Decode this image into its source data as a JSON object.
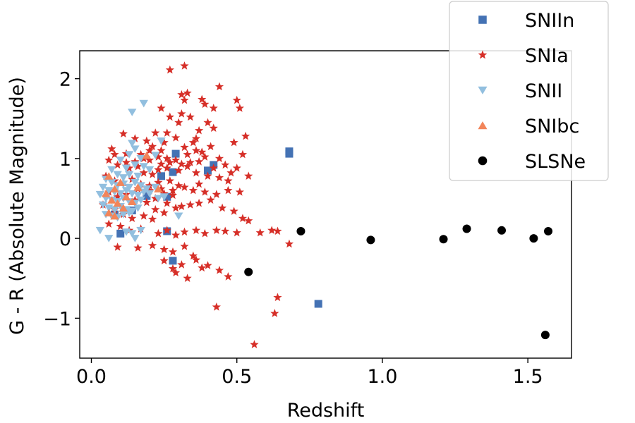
{
  "chart_data": {
    "type": "scatter",
    "title": "",
    "xlabel": "Redshift",
    "ylabel": "G - R (Absolute Magnitude)",
    "xlim": [
      -0.04,
      1.65
    ],
    "ylim": [
      -1.5,
      2.35
    ],
    "xticks": [
      0.0,
      0.5,
      1.0,
      1.5
    ],
    "xtick_labels": [
      "0.0",
      "0.5",
      "1.0",
      "1.5"
    ],
    "yticks": [
      -1,
      0,
      1,
      2
    ],
    "ytick_labels": [
      "−1",
      "0",
      "1",
      "2"
    ],
    "grid": false,
    "legend_position": "upper-right",
    "series": [
      {
        "name": "SNIIn",
        "marker": "square",
        "color": "#4472b4",
        "points": [
          [
            0.68,
            1.06
          ],
          [
            0.68,
            1.09
          ],
          [
            0.4,
            0.85
          ],
          [
            0.42,
            0.92
          ],
          [
            0.29,
            1.06
          ],
          [
            0.28,
            0.83
          ],
          [
            0.24,
            0.78
          ],
          [
            0.78,
            -0.82
          ],
          [
            0.28,
            -0.28
          ],
          [
            0.26,
            0.52
          ],
          [
            0.26,
            0.09
          ],
          [
            0.1,
            0.06
          ],
          [
            0.14,
            0.35
          ],
          [
            0.19,
            0.53
          ],
          [
            0.08,
            0.3
          ]
        ]
      },
      {
        "name": "SNIa",
        "marker": "star",
        "color": "#d62f28",
        "points": [
          [
            0.27,
            2.11
          ],
          [
            0.32,
            2.16
          ],
          [
            0.44,
            1.9
          ],
          [
            0.31,
            1.8
          ],
          [
            0.33,
            1.82
          ],
          [
            0.32,
            1.73
          ],
          [
            0.38,
            1.74
          ],
          [
            0.42,
            1.63
          ],
          [
            0.5,
            1.73
          ],
          [
            0.51,
            1.63
          ],
          [
            0.39,
            1.68
          ],
          [
            0.24,
            1.63
          ],
          [
            0.31,
            1.56
          ],
          [
            0.27,
            1.52
          ],
          [
            0.34,
            1.52
          ],
          [
            0.3,
            1.45
          ],
          [
            0.4,
            1.45
          ],
          [
            0.37,
            1.35
          ],
          [
            0.42,
            1.38
          ],
          [
            0.53,
            1.28
          ],
          [
            0.49,
            1.2
          ],
          [
            0.36,
            1.25
          ],
          [
            0.25,
            1.2
          ],
          [
            0.21,
            1.15
          ],
          [
            0.22,
            1.32
          ],
          [
            0.26,
            1.32
          ],
          [
            0.19,
            1.22
          ],
          [
            0.15,
            1.25
          ],
          [
            0.11,
            1.31
          ],
          [
            0.07,
            1.12
          ],
          [
            0.08,
            1.05
          ],
          [
            0.12,
            1.06
          ],
          [
            0.17,
            1.05
          ],
          [
            0.2,
            1.1
          ],
          [
            0.23,
            1.02
          ],
          [
            0.26,
            1.0
          ],
          [
            0.29,
            0.98
          ],
          [
            0.33,
            1.05
          ],
          [
            0.36,
            1.1
          ],
          [
            0.39,
            1.02
          ],
          [
            0.44,
            1.0
          ],
          [
            0.46,
            0.92
          ],
          [
            0.5,
            0.88
          ],
          [
            0.52,
            1.05
          ],
          [
            0.54,
            0.78
          ],
          [
            0.06,
            0.98
          ],
          [
            0.09,
            0.92
          ],
          [
            0.13,
            0.88
          ],
          [
            0.16,
            0.9
          ],
          [
            0.18,
            0.82
          ],
          [
            0.21,
            0.8
          ],
          [
            0.23,
            0.86
          ],
          [
            0.26,
            0.88
          ],
          [
            0.3,
            0.85
          ],
          [
            0.33,
            0.9
          ],
          [
            0.36,
            0.82
          ],
          [
            0.4,
            0.78
          ],
          [
            0.44,
            0.76
          ],
          [
            0.47,
            0.72
          ],
          [
            0.05,
            0.78
          ],
          [
            0.08,
            0.72
          ],
          [
            0.11,
            0.7
          ],
          [
            0.14,
            0.74
          ],
          [
            0.17,
            0.68
          ],
          [
            0.2,
            0.66
          ],
          [
            0.23,
            0.7
          ],
          [
            0.27,
            0.72
          ],
          [
            0.3,
            0.66
          ],
          [
            0.35,
            0.6
          ],
          [
            0.39,
            0.58
          ],
          [
            0.43,
            0.55
          ],
          [
            0.47,
            0.6
          ],
          [
            0.51,
            0.58
          ],
          [
            0.06,
            0.58
          ],
          [
            0.09,
            0.52
          ],
          [
            0.12,
            0.55
          ],
          [
            0.15,
            0.48
          ],
          [
            0.19,
            0.45
          ],
          [
            0.22,
            0.5
          ],
          [
            0.26,
            0.44
          ],
          [
            0.29,
            0.38
          ],
          [
            0.04,
            0.42
          ],
          [
            0.08,
            0.36
          ],
          [
            0.11,
            0.3
          ],
          [
            0.14,
            0.25
          ],
          [
            0.18,
            0.28
          ],
          [
            0.21,
            0.24
          ],
          [
            0.06,
            0.18
          ],
          [
            0.1,
            0.15
          ],
          [
            0.13,
            0.1
          ],
          [
            0.17,
            0.12
          ],
          [
            0.23,
            0.06
          ],
          [
            0.26,
            0.1
          ],
          [
            0.29,
            0.04
          ],
          [
            0.32,
            0.08
          ],
          [
            0.36,
            0.1
          ],
          [
            0.39,
            0.06
          ],
          [
            0.43,
            0.1
          ],
          [
            0.46,
            0.09
          ],
          [
            0.5,
            0.07
          ],
          [
            0.52,
            0.25
          ],
          [
            0.54,
            0.22
          ],
          [
            0.58,
            0.07
          ],
          [
            0.62,
            0.1
          ],
          [
            0.64,
            0.09
          ],
          [
            0.68,
            -0.07
          ],
          [
            0.09,
            -0.11
          ],
          [
            0.16,
            -0.12
          ],
          [
            0.21,
            -0.09
          ],
          [
            0.25,
            -0.14
          ],
          [
            0.28,
            -0.17
          ],
          [
            0.32,
            -0.1
          ],
          [
            0.35,
            -0.22
          ],
          [
            0.31,
            -0.33
          ],
          [
            0.28,
            -0.38
          ],
          [
            0.25,
            -0.28
          ],
          [
            0.38,
            -0.37
          ],
          [
            0.4,
            -0.34
          ],
          [
            0.44,
            -0.4
          ],
          [
            0.36,
            -0.27
          ],
          [
            0.33,
            -0.5
          ],
          [
            0.47,
            -0.48
          ],
          [
            0.29,
            -0.43
          ],
          [
            0.64,
            -0.74
          ],
          [
            0.63,
            -0.94
          ],
          [
            0.43,
            -0.86
          ],
          [
            0.56,
            -1.33
          ],
          [
            0.31,
            0.4
          ],
          [
            0.34,
            0.42
          ],
          [
            0.37,
            0.44
          ],
          [
            0.41,
            0.48
          ],
          [
            0.45,
            0.38
          ],
          [
            0.49,
            0.34
          ],
          [
            0.25,
            0.56
          ],
          [
            0.28,
            0.54
          ],
          [
            0.32,
            1.14
          ],
          [
            0.35,
            1.2
          ],
          [
            0.38,
            1.08
          ],
          [
            0.41,
            1.15
          ],
          [
            0.29,
            1.26
          ],
          [
            0.24,
            1.1
          ],
          [
            0.2,
            0.98
          ],
          [
            0.18,
            1.0
          ],
          [
            0.15,
            0.96
          ],
          [
            0.12,
            0.95
          ],
          [
            0.34,
            0.95
          ],
          [
            0.37,
            0.96
          ],
          [
            0.31,
            0.93
          ],
          [
            0.27,
            0.95
          ],
          [
            0.24,
            0.93
          ],
          [
            0.42,
            0.88
          ],
          [
            0.48,
            0.82
          ],
          [
            0.16,
            0.62
          ],
          [
            0.2,
            0.6
          ],
          [
            0.24,
            0.62
          ],
          [
            0.28,
            0.6
          ],
          [
            0.32,
            0.64
          ],
          [
            0.37,
            0.68
          ],
          [
            0.22,
            0.36
          ],
          [
            0.25,
            0.32
          ]
        ]
      },
      {
        "name": "SNII",
        "marker": "triangle-down",
        "color": "#92bfdf",
        "points": [
          [
            0.14,
            1.58
          ],
          [
            0.18,
            1.69
          ],
          [
            0.24,
            1.22
          ],
          [
            0.14,
            1.19
          ],
          [
            0.15,
            1.12
          ],
          [
            0.13,
            1.05
          ],
          [
            0.22,
            1.04
          ],
          [
            0.17,
            1.0
          ],
          [
            0.1,
            0.98
          ],
          [
            0.12,
            0.88
          ],
          [
            0.15,
            0.92
          ],
          [
            0.18,
            0.9
          ],
          [
            0.2,
            0.86
          ],
          [
            0.07,
            0.86
          ],
          [
            0.09,
            0.8
          ],
          [
            0.11,
            0.76
          ],
          [
            0.13,
            0.8
          ],
          [
            0.16,
            0.78
          ],
          [
            0.05,
            0.74
          ],
          [
            0.07,
            0.7
          ],
          [
            0.09,
            0.66
          ],
          [
            0.11,
            0.68
          ],
          [
            0.13,
            0.64
          ],
          [
            0.15,
            0.7
          ],
          [
            0.17,
            0.66
          ],
          [
            0.19,
            0.62
          ],
          [
            0.04,
            0.64
          ],
          [
            0.06,
            0.6
          ],
          [
            0.08,
            0.58
          ],
          [
            0.1,
            0.56
          ],
          [
            0.12,
            0.6
          ],
          [
            0.14,
            0.56
          ],
          [
            0.16,
            0.54
          ],
          [
            0.18,
            0.58
          ],
          [
            0.2,
            0.56
          ],
          [
            0.03,
            0.55
          ],
          [
            0.05,
            0.5
          ],
          [
            0.07,
            0.48
          ],
          [
            0.09,
            0.46
          ],
          [
            0.11,
            0.5
          ],
          [
            0.13,
            0.46
          ],
          [
            0.15,
            0.44
          ],
          [
            0.17,
            0.48
          ],
          [
            0.04,
            0.42
          ],
          [
            0.06,
            0.38
          ],
          [
            0.08,
            0.36
          ],
          [
            0.1,
            0.4
          ],
          [
            0.12,
            0.36
          ],
          [
            0.14,
            0.34
          ],
          [
            0.16,
            0.38
          ],
          [
            0.05,
            0.3
          ],
          [
            0.07,
            0.28
          ],
          [
            0.09,
            0.26
          ],
          [
            0.11,
            0.3
          ],
          [
            0.13,
            0.32
          ],
          [
            0.03,
            0.1
          ],
          [
            0.06,
            0.0
          ],
          [
            0.12,
            0.08
          ],
          [
            0.14,
            0.06
          ],
          [
            0.15,
            0.0
          ],
          [
            0.17,
            0.1
          ],
          [
            0.23,
            0.5
          ],
          [
            0.25,
            0.52
          ],
          [
            0.3,
            0.28
          ],
          [
            0.22,
            0.64
          ]
        ]
      },
      {
        "name": "SNIbc",
        "marker": "triangle-up",
        "color": "#f2855a",
        "points": [
          [
            0.06,
            0.78
          ],
          [
            0.08,
            0.62
          ],
          [
            0.1,
            0.7
          ],
          [
            0.07,
            0.48
          ],
          [
            0.09,
            0.44
          ],
          [
            0.06,
            0.32
          ],
          [
            0.08,
            0.28
          ],
          [
            0.12,
            0.52
          ],
          [
            0.14,
            0.46
          ],
          [
            0.19,
            1.04
          ],
          [
            0.23,
            0.62
          ],
          [
            0.05,
            0.56
          ],
          [
            0.11,
            0.38
          ],
          [
            0.16,
            0.64
          ]
        ]
      },
      {
        "name": "SLSNe",
        "marker": "circle",
        "color": "#000000",
        "points": [
          [
            0.54,
            -0.42
          ],
          [
            0.72,
            0.09
          ],
          [
            0.96,
            -0.02
          ],
          [
            1.21,
            -0.01
          ],
          [
            1.29,
            0.12
          ],
          [
            1.41,
            0.1
          ],
          [
            1.52,
            0.0
          ],
          [
            1.57,
            0.09
          ],
          [
            1.56,
            -1.21
          ]
        ]
      }
    ]
  }
}
